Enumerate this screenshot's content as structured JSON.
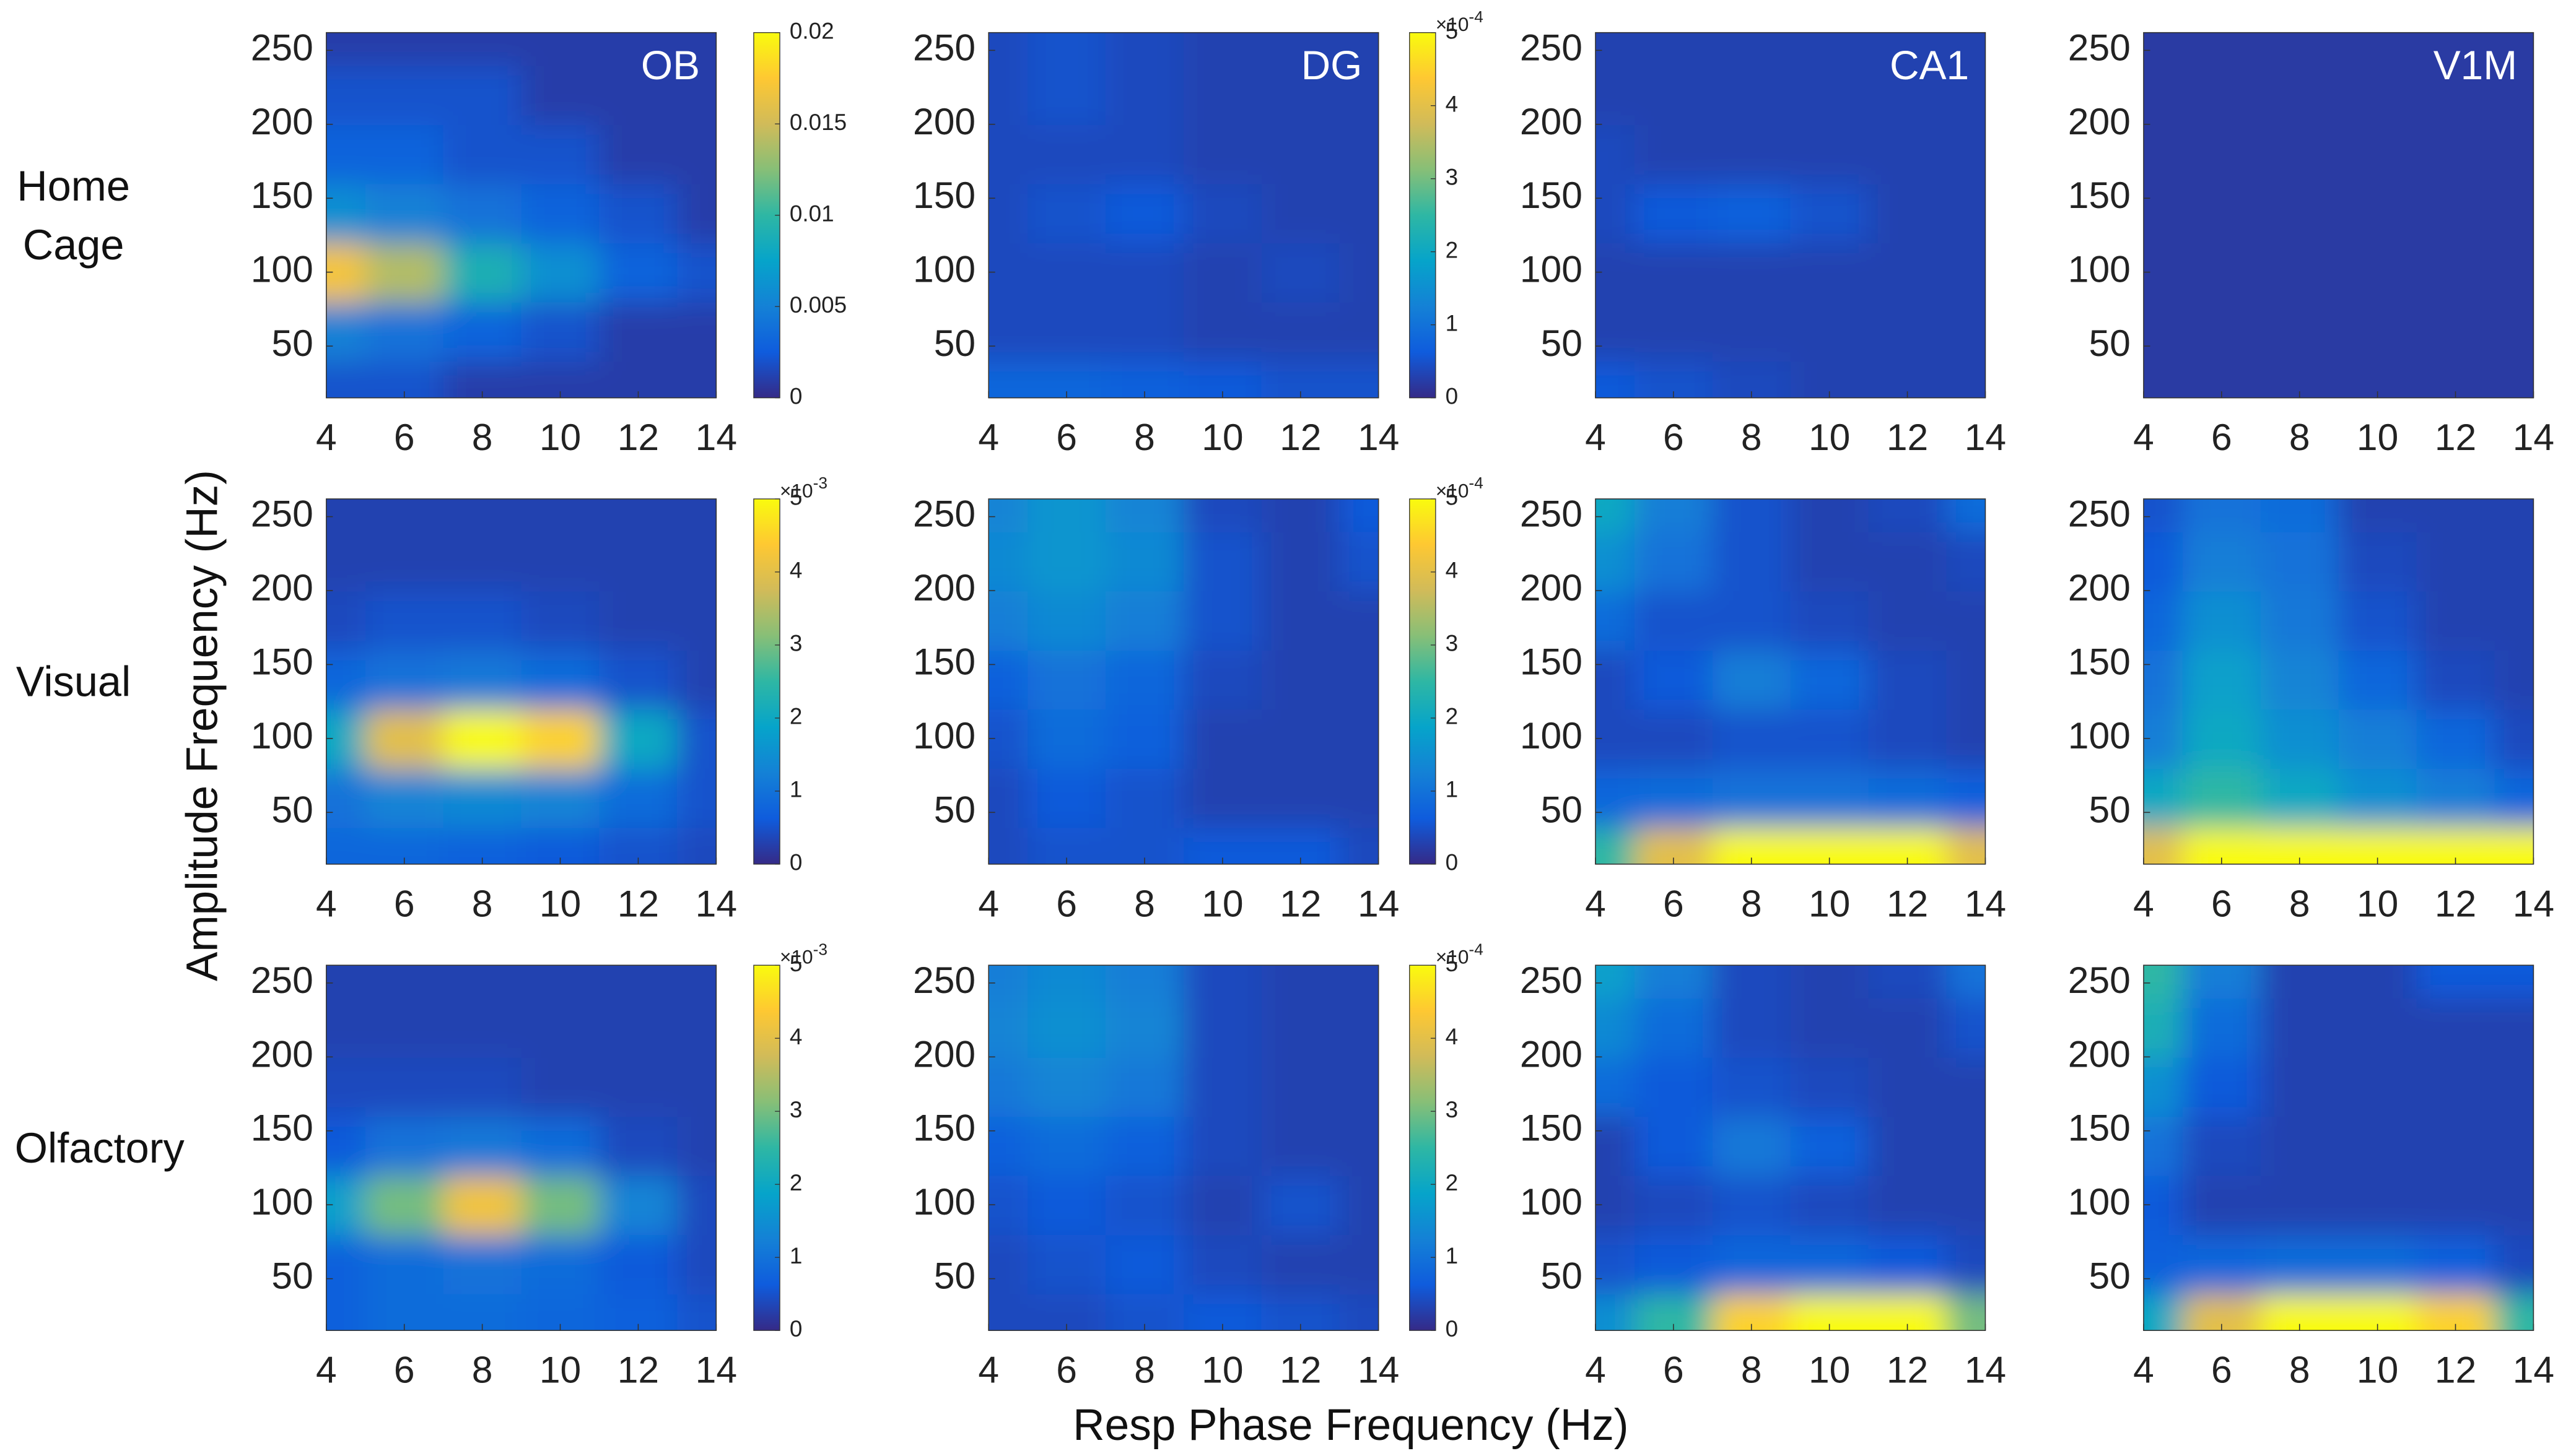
{
  "x_label": "Resp Phase Frequency (Hz)",
  "y_label": "Amplitude Frequency (Hz)",
  "row_labels": [
    "Home Cage",
    "Visual",
    "Olfactory"
  ],
  "colormap": [
    "#352a87",
    "#0f5cdd",
    "#1481d6",
    "#06a4ca",
    "#2eb7a4",
    "#87bf77",
    "#d1bb59",
    "#fec832",
    "#f9fb0e"
  ],
  "chart_data": [
    {
      "type": "heatmap",
      "title": "OB",
      "x": [
        4,
        6,
        8,
        10,
        12,
        14
      ],
      "y": [
        20,
        60,
        100,
        140,
        180,
        220,
        260
      ],
      "xlim": [
        4,
        14
      ],
      "ylim": [
        15,
        262
      ],
      "xticks": [
        4,
        6,
        8,
        10,
        12,
        14
      ],
      "yticks": [
        50,
        100,
        150,
        200,
        250
      ],
      "zlim": [
        0,
        0.02
      ],
      "colorbar_ticks": [
        0,
        0.005,
        0.01,
        0.015,
        0.02
      ],
      "z": [
        [
          0.002,
          0.002,
          0.001,
          0.001,
          0.001,
          0.001
        ],
        [
          0.005,
          0.004,
          0.003,
          0.002,
          0.001,
          0.001
        ],
        [
          0.017,
          0.014,
          0.009,
          0.006,
          0.003,
          0.002
        ],
        [
          0.006,
          0.005,
          0.004,
          0.003,
          0.002,
          0.001
        ],
        [
          0.003,
          0.003,
          0.002,
          0.002,
          0.001,
          0.001
        ],
        [
          0.002,
          0.002,
          0.002,
          0.001,
          0.001,
          0.001
        ],
        [
          0.001,
          0.001,
          0.001,
          0.001,
          0.001,
          0.001
        ]
      ]
    },
    {
      "type": "heatmap",
      "title": "DG",
      "x": [
        4,
        6,
        8,
        10,
        12,
        14
      ],
      "y": [
        20,
        60,
        100,
        140,
        180,
        220,
        260
      ],
      "xlim": [
        4,
        14
      ],
      "ylim": [
        15,
        262
      ],
      "xticks": [
        4,
        6,
        8,
        10,
        12,
        14
      ],
      "yticks": [
        50,
        100,
        150,
        200,
        250
      ],
      "zlim": [
        0,
        5
      ],
      "colorbar_ticks": [
        0,
        1,
        2,
        3,
        4,
        5
      ],
      "colorbar_scale": "×10",
      "colorbar_power": "-4",
      "z": [
        [
          0.8,
          0.8,
          0.7,
          0.6,
          0.5,
          0.5
        ],
        [
          0.4,
          0.4,
          0.4,
          0.3,
          0.3,
          0.3
        ],
        [
          0.4,
          0.4,
          0.4,
          0.3,
          0.4,
          0.3
        ],
        [
          0.4,
          0.5,
          0.6,
          0.4,
          0.3,
          0.3
        ],
        [
          0.4,
          0.4,
          0.4,
          0.3,
          0.3,
          0.3
        ],
        [
          0.4,
          0.5,
          0.4,
          0.3,
          0.3,
          0.3
        ],
        [
          0.4,
          0.5,
          0.4,
          0.3,
          0.3,
          0.3
        ]
      ]
    },
    {
      "type": "heatmap",
      "title": "CA1",
      "x": [
        4,
        6,
        8,
        10,
        12,
        14
      ],
      "y": [
        20,
        60,
        100,
        140,
        180,
        220,
        260
      ],
      "xlim": [
        4,
        14
      ],
      "ylim": [
        15,
        262
      ],
      "xticks": [
        4,
        6,
        8,
        10,
        12,
        14
      ],
      "yticks": [
        50,
        100,
        150,
        200,
        250
      ],
      "zlim": [
        0,
        5
      ],
      "z": [
        [
          0.6,
          0.5,
          0.4,
          0.3,
          0.3,
          0.3
        ],
        [
          0.3,
          0.3,
          0.3,
          0.3,
          0.3,
          0.3
        ],
        [
          0.3,
          0.3,
          0.3,
          0.3,
          0.3,
          0.3
        ],
        [
          0.4,
          0.6,
          0.7,
          0.5,
          0.3,
          0.3
        ],
        [
          0.4,
          0.3,
          0.3,
          0.3,
          0.3,
          0.3
        ],
        [
          0.3,
          0.3,
          0.3,
          0.3,
          0.3,
          0.3
        ],
        [
          0.3,
          0.3,
          0.3,
          0.3,
          0.3,
          0.3
        ]
      ]
    },
    {
      "type": "heatmap",
      "title": "V1M",
      "x": [
        4,
        6,
        8,
        10,
        12,
        14
      ],
      "y": [
        20,
        60,
        100,
        140,
        180,
        220,
        260
      ],
      "xlim": [
        4,
        14
      ],
      "ylim": [
        15,
        262
      ],
      "xticks": [
        4,
        6,
        8,
        10,
        12,
        14
      ],
      "yticks": [
        50,
        100,
        150,
        200,
        250
      ],
      "zlim": [
        0,
        5
      ],
      "z": [
        [
          0.2,
          0.2,
          0.2,
          0.2,
          0.2,
          0.2
        ],
        [
          0.2,
          0.2,
          0.2,
          0.2,
          0.2,
          0.2
        ],
        [
          0.2,
          0.2,
          0.2,
          0.2,
          0.2,
          0.2
        ],
        [
          0.2,
          0.2,
          0.2,
          0.2,
          0.2,
          0.2
        ],
        [
          0.2,
          0.2,
          0.2,
          0.2,
          0.2,
          0.2
        ],
        [
          0.2,
          0.2,
          0.2,
          0.2,
          0.2,
          0.2
        ],
        [
          0.2,
          0.2,
          0.2,
          0.2,
          0.2,
          0.2
        ]
      ]
    },
    {
      "type": "heatmap",
      "x": [
        4,
        6,
        8,
        10,
        12,
        14
      ],
      "y": [
        20,
        60,
        100,
        140,
        180,
        220,
        260
      ],
      "xlim": [
        4,
        14
      ],
      "ylim": [
        15,
        262
      ],
      "xticks": [
        4,
        6,
        8,
        10,
        12,
        14
      ],
      "yticks": [
        50,
        100,
        150,
        200,
        250
      ],
      "zlim": [
        0,
        5
      ],
      "colorbar_ticks": [
        0,
        1,
        2,
        3,
        4,
        5
      ],
      "colorbar_scale": "×10",
      "colorbar_power": "-3",
      "z": [
        [
          0.8,
          0.8,
          0.7,
          0.6,
          0.5,
          0.4
        ],
        [
          1,
          1.3,
          1.4,
          1.3,
          0.9,
          0.5
        ],
        [
          2,
          4,
          5,
          4.5,
          2,
          0.5
        ],
        [
          0.8,
          1,
          1.1,
          0.9,
          0.5,
          0.3
        ],
        [
          0.4,
          0.5,
          0.5,
          0.4,
          0.3,
          0.3
        ],
        [
          0.3,
          0.3,
          0.3,
          0.3,
          0.3,
          0.3
        ],
        [
          0.3,
          0.3,
          0.3,
          0.3,
          0.3,
          0.3
        ]
      ]
    },
    {
      "type": "heatmap",
      "x": [
        4,
        6,
        8,
        10,
        12,
        14
      ],
      "y": [
        20,
        60,
        100,
        140,
        180,
        220,
        260
      ],
      "xlim": [
        4,
        14
      ],
      "ylim": [
        15,
        262
      ],
      "xticks": [
        4,
        6,
        8,
        10,
        12,
        14
      ],
      "yticks": [
        50,
        100,
        150,
        200,
        250
      ],
      "zlim": [
        0,
        5
      ],
      "colorbar_ticks": [
        0,
        1,
        2,
        3,
        4,
        5
      ],
      "colorbar_scale": "×10",
      "colorbar_power": "-4",
      "z": [
        [
          0.4,
          0.5,
          0.5,
          0.6,
          0.6,
          0.4
        ],
        [
          0.4,
          0.6,
          0.5,
          0.3,
          0.3,
          0.3
        ],
        [
          0.5,
          0.9,
          0.7,
          0.3,
          0.3,
          0.3
        ],
        [
          0.7,
          1,
          0.8,
          0.4,
          0.3,
          0.3
        ],
        [
          1.2,
          1.4,
          1.2,
          0.5,
          0.3,
          0.3
        ],
        [
          1.4,
          1.6,
          1.4,
          0.5,
          0.3,
          0.5
        ],
        [
          1.3,
          1.6,
          1.3,
          0.4,
          0.3,
          0.6
        ]
      ]
    },
    {
      "type": "heatmap",
      "x": [
        4,
        6,
        8,
        10,
        12,
        14
      ],
      "y": [
        20,
        60,
        100,
        140,
        180,
        220,
        260
      ],
      "xlim": [
        4,
        14
      ],
      "ylim": [
        15,
        262
      ],
      "xticks": [
        4,
        6,
        8,
        10,
        12,
        14
      ],
      "yticks": [
        50,
        100,
        150,
        200,
        250
      ],
      "zlim": [
        0,
        5
      ],
      "z": [
        [
          2.5,
          4,
          5,
          5,
          5,
          4
        ],
        [
          0.8,
          0.9,
          1,
          1,
          0.9,
          0.7
        ],
        [
          0.4,
          0.4,
          0.5,
          0.5,
          0.4,
          0.3
        ],
        [
          0.4,
          0.6,
          1.2,
          0.8,
          0.4,
          0.3
        ],
        [
          0.9,
          0.5,
          0.5,
          0.4,
          0.3,
          0.3
        ],
        [
          1.5,
          1,
          0.5,
          0.3,
          0.3,
          0.4
        ],
        [
          2,
          1.2,
          0.5,
          0.3,
          0.4,
          0.9
        ]
      ]
    },
    {
      "type": "heatmap",
      "x": [
        4,
        6,
        8,
        10,
        12,
        14
      ],
      "y": [
        20,
        60,
        100,
        140,
        180,
        220,
        260
      ],
      "xlim": [
        4,
        14
      ],
      "ylim": [
        15,
        262
      ],
      "xticks": [
        4,
        6,
        8,
        10,
        12,
        14
      ],
      "yticks": [
        50,
        100,
        150,
        200,
        250
      ],
      "zlim": [
        0,
        5
      ],
      "z": [
        [
          4,
          5,
          5,
          5,
          5,
          5
        ],
        [
          2,
          2.5,
          2,
          1.5,
          1.2,
          0.8
        ],
        [
          1.2,
          2,
          1.5,
          1.2,
          0.8,
          0.4
        ],
        [
          1,
          1.8,
          1.3,
          0.8,
          0.4,
          0.3
        ],
        [
          0.8,
          1.5,
          1.1,
          0.5,
          0.3,
          0.3
        ],
        [
          0.6,
          1.2,
          1,
          0.4,
          0.3,
          0.3
        ],
        [
          0.5,
          1,
          0.9,
          0.3,
          0.3,
          0.3
        ]
      ]
    },
    {
      "type": "heatmap",
      "x": [
        4,
        6,
        8,
        10,
        12,
        14
      ],
      "y": [
        20,
        60,
        100,
        140,
        180,
        220,
        260
      ],
      "xlim": [
        4,
        14
      ],
      "ylim": [
        15,
        262
      ],
      "xticks": [
        4,
        6,
        8,
        10,
        12,
        14
      ],
      "yticks": [
        50,
        100,
        150,
        200,
        250
      ],
      "zlim": [
        0,
        5
      ],
      "colorbar_ticks": [
        0,
        1,
        2,
        3,
        4,
        5
      ],
      "colorbar_scale": "×10",
      "colorbar_power": "-3",
      "z": [
        [
          0.7,
          0.9,
          0.9,
          0.8,
          0.7,
          0.5
        ],
        [
          0.7,
          0.9,
          1,
          0.9,
          0.6,
          0.4
        ],
        [
          1.8,
          3,
          4.2,
          3,
          1.3,
          0.4
        ],
        [
          0.6,
          1,
          1.1,
          0.9,
          0.4,
          0.3
        ],
        [
          0.4,
          0.4,
          0.4,
          0.3,
          0.3,
          0.3
        ],
        [
          0.3,
          0.3,
          0.3,
          0.3,
          0.3,
          0.3
        ],
        [
          0.3,
          0.3,
          0.3,
          0.3,
          0.3,
          0.3
        ]
      ]
    },
    {
      "type": "heatmap",
      "x": [
        4,
        6,
        8,
        10,
        12,
        14
      ],
      "y": [
        20,
        60,
        100,
        140,
        180,
        220,
        260
      ],
      "xlim": [
        4,
        14
      ],
      "ylim": [
        15,
        262
      ],
      "xticks": [
        4,
        6,
        8,
        10,
        12,
        14
      ],
      "yticks": [
        50,
        100,
        150,
        200,
        250
      ],
      "zlim": [
        0,
        5
      ],
      "colorbar_ticks": [
        0,
        1,
        2,
        3,
        4,
        5
      ],
      "colorbar_scale": "×10",
      "colorbar_power": "-4",
      "z": [
        [
          0.4,
          0.4,
          0.5,
          0.6,
          0.5,
          0.4
        ],
        [
          0.4,
          0.5,
          0.6,
          0.4,
          0.3,
          0.3
        ],
        [
          0.5,
          0.6,
          0.5,
          0.3,
          0.5,
          0.3
        ],
        [
          0.7,
          0.9,
          0.7,
          0.4,
          0.3,
          0.3
        ],
        [
          1.1,
          1.3,
          1.1,
          0.4,
          0.3,
          0.3
        ],
        [
          1.3,
          1.5,
          1.3,
          0.4,
          0.3,
          0.3
        ],
        [
          1.2,
          1.4,
          1.2,
          0.4,
          0.3,
          0.3
        ]
      ]
    },
    {
      "type": "heatmap",
      "x": [
        4,
        6,
        8,
        10,
        12,
        14
      ],
      "y": [
        20,
        60,
        100,
        140,
        180,
        220,
        260
      ],
      "xlim": [
        4,
        14
      ],
      "ylim": [
        15,
        262
      ],
      "xticks": [
        4,
        6,
        8,
        10,
        12,
        14
      ],
      "yticks": [
        50,
        100,
        150,
        200,
        250
      ],
      "zlim": [
        0,
        5
      ],
      "z": [
        [
          1.5,
          2.5,
          4.5,
          5,
          5,
          3
        ],
        [
          0.5,
          0.6,
          0.8,
          0.8,
          0.6,
          0.4
        ],
        [
          0.3,
          0.4,
          0.5,
          0.4,
          0.3,
          0.3
        ],
        [
          0.3,
          0.6,
          1.1,
          0.7,
          0.3,
          0.3
        ],
        [
          0.9,
          0.6,
          0.5,
          0.4,
          0.3,
          0.3
        ],
        [
          1.4,
          0.9,
          0.4,
          0.3,
          0.3,
          0.5
        ],
        [
          1.8,
          1.2,
          0.4,
          0.3,
          0.4,
          1
        ]
      ]
    },
    {
      "type": "heatmap",
      "x": [
        4,
        6,
        8,
        10,
        12,
        14
      ],
      "y": [
        20,
        60,
        100,
        140,
        180,
        220,
        260
      ],
      "xlim": [
        4,
        14
      ],
      "ylim": [
        15,
        262
      ],
      "xticks": [
        4,
        6,
        8,
        10,
        12,
        14
      ],
      "yticks": [
        50,
        100,
        150,
        200,
        250
      ],
      "zlim": [
        0,
        5
      ],
      "z": [
        [
          2,
          4,
          5,
          5,
          4.5,
          2.5
        ],
        [
          0.7,
          0.8,
          0.9,
          0.9,
          0.7,
          0.4
        ],
        [
          0.6,
          0.3,
          0.3,
          0.3,
          0.3,
          0.3
        ],
        [
          1,
          0.4,
          0.3,
          0.3,
          0.3,
          0.3
        ],
        [
          1.5,
          0.6,
          0.3,
          0.3,
          0.3,
          0.3
        ],
        [
          2.2,
          0.9,
          0.3,
          0.3,
          0.3,
          0.3
        ],
        [
          2.5,
          1.2,
          0.3,
          0.3,
          0.6,
          0.6
        ]
      ]
    }
  ]
}
